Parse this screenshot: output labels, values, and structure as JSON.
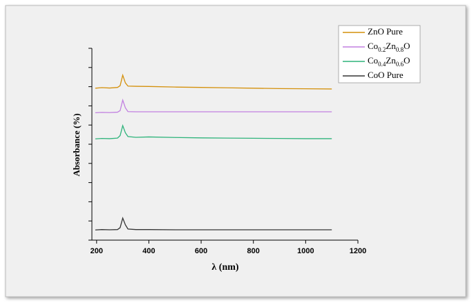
{
  "chart_data": {
    "type": "line",
    "x_label": "λ (nm)",
    "y_label": "Absorbance (%)",
    "x": [
      195,
      220,
      250,
      280,
      290,
      300,
      310,
      320,
      350,
      400,
      500,
      600,
      700,
      800,
      900,
      1000,
      1100
    ],
    "series": [
      {
        "name": "ZnO Pure",
        "color": "#d4900a",
        "values": [
          79.2,
          79.5,
          79.3,
          79.6,
          80.5,
          86,
          82,
          80.3,
          80.2,
          80.1,
          79.8,
          79.6,
          79.4,
          79.2,
          79,
          78.9,
          78.8
        ]
      },
      {
        "name": "Co0.2Zn0.8O",
        "color": "#c17fe0",
        "values": [
          66.4,
          66.6,
          66.5,
          66.7,
          67.5,
          73,
          69,
          67,
          66.9,
          66.9,
          66.9,
          66.9,
          66.9,
          66.9,
          66.9,
          66.9,
          66.9
        ]
      },
      {
        "name": "Co0.4Zn0.6O",
        "color": "#2db37a",
        "values": [
          52.8,
          53,
          52.9,
          53.2,
          54.5,
          59.7,
          56,
          54,
          53.6,
          53.8,
          53.5,
          53.3,
          53.2,
          53.1,
          53,
          52.9,
          52.9
        ]
      },
      {
        "name": "CoO Pure",
        "color": "#333333",
        "values": [
          5.3,
          5.5,
          5.4,
          5.5,
          6.5,
          11.5,
          8,
          5.8,
          5.5,
          5.5,
          5.4,
          5.4,
          5.4,
          5.4,
          5.4,
          5.4,
          5.4
        ]
      }
    ],
    "xlim": [
      182,
      1200
    ],
    "xticks": [
      200,
      400,
      600,
      800,
      1000,
      1200
    ],
    "ylim": [
      0,
      100
    ],
    "yticks": [
      0,
      10,
      20,
      30,
      40,
      50,
      60,
      70,
      80,
      90,
      100
    ],
    "show_ytick_labels": false,
    "legend": "top-right"
  }
}
